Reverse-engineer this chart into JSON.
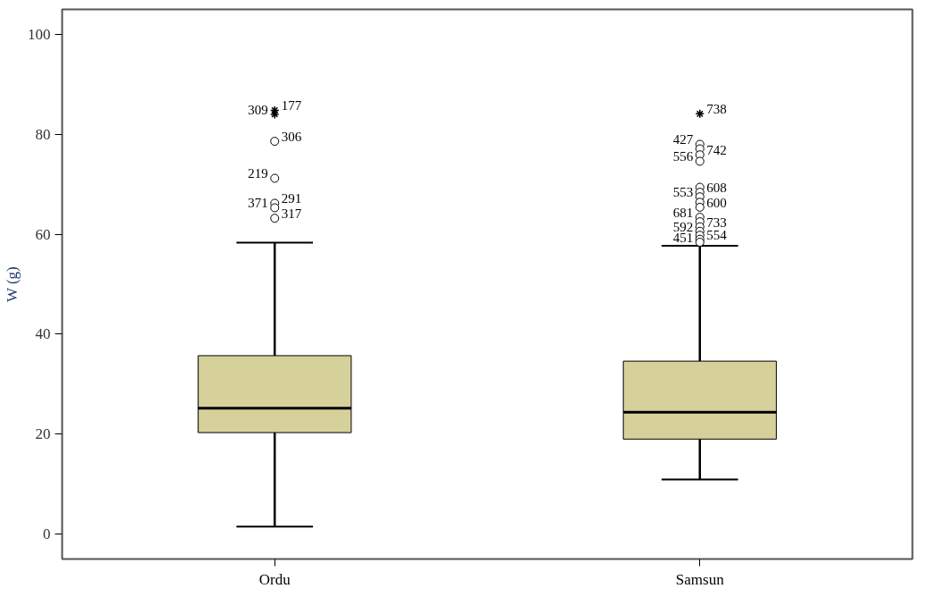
{
  "chart_data": {
    "type": "box",
    "ylabel": "W (g)",
    "categories": [
      "Ordu",
      "Samsun"
    ],
    "ylim": [
      -5,
      105
    ],
    "yticks": [
      0,
      20,
      40,
      60,
      80,
      100
    ],
    "grid": false,
    "color": "#d6d09b",
    "boxes": [
      {
        "low": 1.5,
        "q1": 20.3,
        "median": 25.2,
        "q3": 35.7,
        "high": 58.3,
        "outliers": [
          84.8,
          84.0,
          78.6,
          71.2,
          66.2,
          65.3,
          63.2
        ]
      },
      {
        "low": 10.9,
        "q1": 19.0,
        "median": 24.4,
        "q3": 34.6,
        "high": 57.7,
        "outliers": [
          84.1,
          78.0,
          77.1,
          75.9,
          74.6,
          69.4,
          68.4,
          67.5,
          66.4,
          65.4,
          63.4,
          62.5,
          61.5,
          60.6,
          59.8,
          59.0,
          58.4
        ]
      }
    ],
    "annotations": [
      "177",
      "309",
      "306",
      "219",
      "291",
      "371",
      "317",
      "738",
      "427",
      "742",
      "556",
      "608",
      "553",
      "600",
      "681",
      "733",
      "592",
      "554",
      "451"
    ]
  }
}
